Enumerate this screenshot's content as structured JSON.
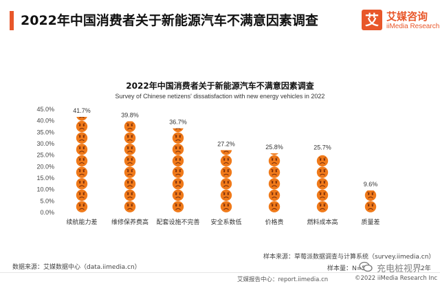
{
  "header": {
    "title": "2022年中国消费者关于新能源汽车不满意因素调查",
    "logo_mark": "艾",
    "logo_cn": "艾媒咨询",
    "logo_en": "iiMedia Research"
  },
  "colors": {
    "accent": "#e8572a",
    "emoji": "#f07a1a",
    "emoji_face": "#7a2e0b"
  },
  "chart_data": {
    "type": "pictograph",
    "title": "2022年中国消费者关于新能源汽车不满意因素调查",
    "subtitle": "Survey of Chinese netizens' dissatisfaction with new energy vehicles in 2022",
    "categories": [
      "续航能力差",
      "维修保养费高",
      "配套设施不完善",
      "安全系数低",
      "价格贵",
      "燃料成本高",
      "质量差"
    ],
    "values": [
      41.7,
      39.8,
      36.7,
      27.2,
      25.8,
      25.7,
      9.6
    ],
    "value_labels": [
      "41.7%",
      "39.8%",
      "36.7%",
      "27.2%",
      "25.8%",
      "25.7%",
      "9.6%"
    ],
    "yticks": [
      "0.0%",
      "5.0%",
      "10.0%",
      "15.0%",
      "20.0%",
      "25.0%",
      "30.0%",
      "35.0%",
      "40.0%",
      "45.0%"
    ],
    "ylim": [
      0,
      45
    ],
    "grid": false,
    "legend": "none",
    "icon": "frown-face-icon"
  },
  "notes": {
    "sample_source": "样本来源：草莓派数据调查与计算系统（survey.iimedia.cn）",
    "sample_size": "样本量：N=5",
    "sample_size_tail": "2年",
    "data_source": "数据来源：艾媒数据中心（data.iimedia.cn）"
  },
  "footer": {
    "report_center": "艾媒报告中心：report.iimedia.cn",
    "copyright": "©2022  iiMedia Research  Inc"
  },
  "watermark": {
    "text": "充电桩视界"
  }
}
